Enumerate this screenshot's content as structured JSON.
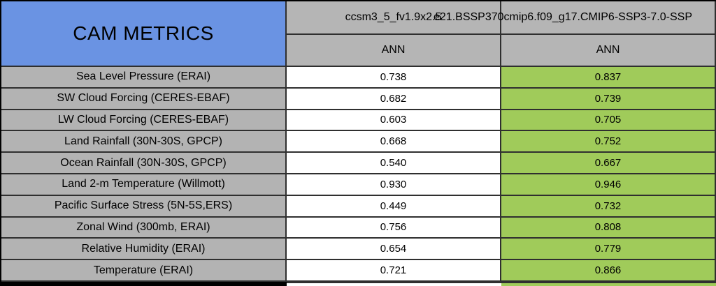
{
  "header": {
    "title": "CAM METRICS",
    "columns": [
      {
        "model": "ccsm3_5_fv1.9x2.5",
        "season": "ANN"
      },
      {
        "model": "e21.BSSP370cmip6.f09_g17.CMIP6-SSP3-7.0-SSP",
        "season": "ANN"
      }
    ]
  },
  "rows": [
    {
      "metric": "Sea Level Pressure (ERAI)",
      "values": [
        "0.738",
        "0.837"
      ]
    },
    {
      "metric": "SW Cloud Forcing (CERES-EBAF)",
      "values": [
        "0.682",
        "0.739"
      ]
    },
    {
      "metric": "LW Cloud Forcing (CERES-EBAF)",
      "values": [
        "0.603",
        "0.705"
      ]
    },
    {
      "metric": "Land Rainfall (30N-30S, GPCP)",
      "values": [
        "0.668",
        "0.752"
      ]
    },
    {
      "metric": "Ocean Rainfall (30N-30S, GPCP)",
      "values": [
        "0.540",
        "0.667"
      ]
    },
    {
      "metric": "Land 2-m Temperature (Willmott)",
      "values": [
        "0.930",
        "0.946"
      ]
    },
    {
      "metric": "Pacific Surface Stress (5N-5S,ERS)",
      "values": [
        "0.449",
        "0.732"
      ]
    },
    {
      "metric": "Zonal Wind (300mb, ERAI)",
      "values": [
        "0.756",
        "0.808"
      ]
    },
    {
      "metric": "Relative Humidity (ERAI)",
      "values": [
        "0.654",
        "0.779"
      ]
    },
    {
      "metric": "Temperature (ERAI)",
      "values": [
        "0.721",
        "0.866"
      ]
    }
  ],
  "colors": {
    "title_bg": "#6a93e3",
    "header_bg": "#b5b5b5",
    "label_bg": "#b3b3b3",
    "value_bg": "#ffffff",
    "highlight_green_bg": "#a0cb5a",
    "grid_border": "#2f2f2f",
    "outer_border": "#000000",
    "text": "#000000"
  },
  "chart_data": {
    "type": "table",
    "title": "CAM METRICS",
    "categories": [
      "Sea Level Pressure (ERAI)",
      "SW Cloud Forcing (CERES-EBAF)",
      "LW Cloud Forcing (CERES-EBAF)",
      "Land Rainfall (30N-30S, GPCP)",
      "Ocean Rainfall (30N-30S, GPCP)",
      "Land 2-m Temperature (Willmott)",
      "Pacific Surface Stress (5N-5S,ERS)",
      "Zonal Wind (300mb, ERAI)",
      "Relative Humidity (ERAI)",
      "Temperature (ERAI)"
    ],
    "series": [
      {
        "name": "ccsm3_5_fv1.9x2.5 (ANN)",
        "values": [
          0.738,
          0.682,
          0.603,
          0.668,
          0.54,
          0.93,
          0.449,
          0.756,
          0.654,
          0.721
        ]
      },
      {
        "name": "e21.BSSP370cmip6.f09_g17.CMIP6-SSP3-7.0-SSP (ANN)",
        "values": [
          0.837,
          0.739,
          0.705,
          0.752,
          0.667,
          0.946,
          0.732,
          0.808,
          0.779,
          0.866
        ]
      }
    ],
    "notes": "Second series cells highlighted green (higher/better skill scores)"
  }
}
